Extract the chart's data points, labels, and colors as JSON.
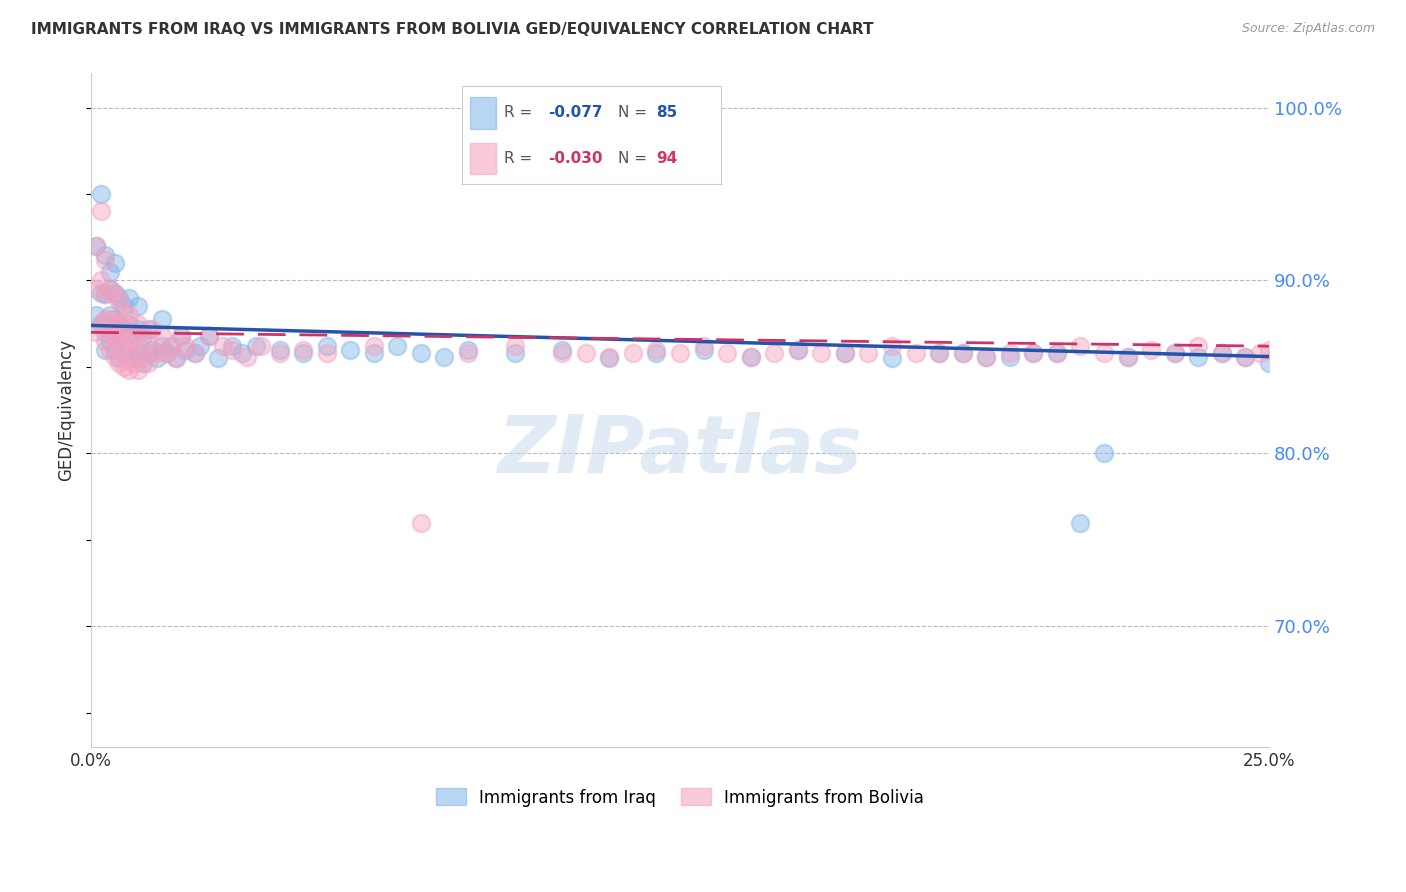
{
  "title": "IMMIGRANTS FROM IRAQ VS IMMIGRANTS FROM BOLIVIA GED/EQUIVALENCY CORRELATION CHART",
  "source": "Source: ZipAtlas.com",
  "ylabel": "GED/Equivalency",
  "xlim": [
    0.0,
    0.25
  ],
  "ylim": [
    0.63,
    1.02
  ],
  "iraq_color": "#7EB3E8",
  "bolivia_color": "#F4A0BE",
  "iraq_line_color": "#2255AA",
  "bolivia_line_color": "#CC3366",
  "iraq_R": -0.077,
  "iraq_N": 85,
  "bolivia_R": -0.03,
  "bolivia_N": 94,
  "watermark": "ZIPatlas",
  "legend_iraq": "Immigrants from Iraq",
  "legend_bolivia": "Immigrants from Bolivia",
  "iraq_x": [
    0.001,
    0.001,
    0.002,
    0.002,
    0.002,
    0.003,
    0.003,
    0.003,
    0.003,
    0.004,
    0.004,
    0.004,
    0.004,
    0.005,
    0.005,
    0.005,
    0.005,
    0.005,
    0.006,
    0.006,
    0.006,
    0.006,
    0.007,
    0.007,
    0.007,
    0.008,
    0.008,
    0.008,
    0.009,
    0.009,
    0.01,
    0.01,
    0.01,
    0.011,
    0.011,
    0.012,
    0.012,
    0.013,
    0.014,
    0.015,
    0.015,
    0.016,
    0.017,
    0.018,
    0.019,
    0.02,
    0.022,
    0.023,
    0.025,
    0.027,
    0.03,
    0.032,
    0.035,
    0.04,
    0.045,
    0.05,
    0.055,
    0.06,
    0.065,
    0.07,
    0.075,
    0.08,
    0.09,
    0.1,
    0.11,
    0.12,
    0.13,
    0.14,
    0.15,
    0.16,
    0.17,
    0.18,
    0.19,
    0.2,
    0.21,
    0.22,
    0.23,
    0.235,
    0.24,
    0.245,
    0.25,
    0.215,
    0.205,
    0.195,
    0.185
  ],
  "iraq_y": [
    0.88,
    0.92,
    0.893,
    0.95,
    0.875,
    0.86,
    0.892,
    0.915,
    0.87,
    0.88,
    0.895,
    0.865,
    0.905,
    0.86,
    0.878,
    0.893,
    0.87,
    0.91,
    0.855,
    0.875,
    0.89,
    0.868,
    0.858,
    0.872,
    0.885,
    0.86,
    0.875,
    0.89,
    0.855,
    0.87,
    0.858,
    0.872,
    0.885,
    0.852,
    0.868,
    0.858,
    0.872,
    0.86,
    0.855,
    0.862,
    0.878,
    0.858,
    0.862,
    0.855,
    0.868,
    0.86,
    0.858,
    0.862,
    0.868,
    0.855,
    0.862,
    0.858,
    0.862,
    0.86,
    0.858,
    0.862,
    0.86,
    0.858,
    0.862,
    0.858,
    0.856,
    0.86,
    0.858,
    0.86,
    0.855,
    0.858,
    0.86,
    0.856,
    0.86,
    0.858,
    0.855,
    0.858,
    0.856,
    0.858,
    0.76,
    0.856,
    0.858,
    0.856,
    0.858,
    0.856,
    0.852,
    0.8,
    0.858,
    0.856,
    0.858
  ],
  "bolivia_x": [
    0.001,
    0.001,
    0.001,
    0.002,
    0.002,
    0.002,
    0.003,
    0.003,
    0.003,
    0.003,
    0.004,
    0.004,
    0.004,
    0.004,
    0.005,
    0.005,
    0.005,
    0.005,
    0.006,
    0.006,
    0.006,
    0.006,
    0.006,
    0.007,
    0.007,
    0.007,
    0.007,
    0.008,
    0.008,
    0.008,
    0.009,
    0.009,
    0.009,
    0.01,
    0.01,
    0.01,
    0.011,
    0.011,
    0.012,
    0.012,
    0.013,
    0.013,
    0.014,
    0.015,
    0.016,
    0.017,
    0.018,
    0.019,
    0.02,
    0.022,
    0.025,
    0.028,
    0.03,
    0.033,
    0.036,
    0.04,
    0.045,
    0.05,
    0.06,
    0.07,
    0.08,
    0.09,
    0.1,
    0.11,
    0.12,
    0.13,
    0.14,
    0.15,
    0.16,
    0.17,
    0.18,
    0.19,
    0.2,
    0.21,
    0.22,
    0.225,
    0.23,
    0.235,
    0.24,
    0.245,
    0.248,
    0.25,
    0.165,
    0.175,
    0.185,
    0.195,
    0.205,
    0.215,
    0.135,
    0.145,
    0.155,
    0.115,
    0.125,
    0.105
  ],
  "bolivia_y": [
    0.87,
    0.895,
    0.92,
    0.9,
    0.94,
    0.875,
    0.865,
    0.892,
    0.912,
    0.878,
    0.86,
    0.878,
    0.895,
    0.87,
    0.856,
    0.875,
    0.892,
    0.866,
    0.852,
    0.87,
    0.888,
    0.86,
    0.875,
    0.85,
    0.868,
    0.882,
    0.86,
    0.848,
    0.865,
    0.88,
    0.852,
    0.868,
    0.858,
    0.848,
    0.862,
    0.875,
    0.855,
    0.87,
    0.852,
    0.866,
    0.858,
    0.872,
    0.858,
    0.868,
    0.858,
    0.862,
    0.855,
    0.868,
    0.862,
    0.858,
    0.868,
    0.862,
    0.86,
    0.856,
    0.862,
    0.858,
    0.86,
    0.858,
    0.862,
    0.76,
    0.858,
    0.862,
    0.858,
    0.856,
    0.86,
    0.862,
    0.856,
    0.86,
    0.858,
    0.862,
    0.858,
    0.856,
    0.858,
    0.862,
    0.856,
    0.86,
    0.858,
    0.862,
    0.858,
    0.856,
    0.858,
    0.86,
    0.858,
    0.858,
    0.858,
    0.858,
    0.858,
    0.858,
    0.858,
    0.858,
    0.858,
    0.858,
    0.858,
    0.858
  ]
}
